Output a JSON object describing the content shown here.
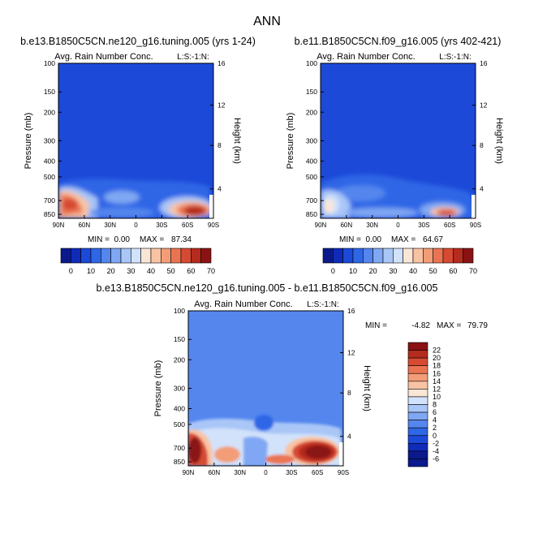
{
  "page": {
    "season": "ANN"
  },
  "colors": {
    "scale": [
      "#0a1a8c",
      "#0f2bb8",
      "#1c49d8",
      "#2f66e6",
      "#5586ee",
      "#7fa7f3",
      "#a9c6f7",
      "#d2e2fb",
      "#fbe6d6",
      "#f8c3a3",
      "#f39d78",
      "#ea7452",
      "#d64a33",
      "#b52b1d",
      "#8a1212"
    ],
    "diffscale": [
      "#0a1a8c",
      "#0f2bb8",
      "#1c49d8",
      "#2f66e6",
      "#5586ee",
      "#7fa7f3",
      "#a9c6f7",
      "#d2e2fb",
      "#fbe6d6",
      "#f8c3a3",
      "#f39d78",
      "#ea7452",
      "#d64a33",
      "#b52b1d",
      "#8a1212"
    ]
  },
  "chart_data": [
    {
      "type": "heatmap",
      "id": "p1",
      "title": "b.e13.B1850C5CN.ne120_g16.tuning.005 (yrs 1-24)",
      "subtitle": "Avg. Rain Number Conc.",
      "corner_label": "L:S:-1:N:",
      "ylabel": "Pressure (mb)",
      "ylabel_right": "Height (km)",
      "xticks": [
        "90N",
        "60N",
        "30N",
        "0",
        "30S",
        "60S",
        "90S"
      ],
      "yticks": [
        "100",
        "150",
        "200",
        "300",
        "400",
        "500",
        "700",
        "850"
      ],
      "yticks_right": [
        "16",
        "12",
        "8",
        "4"
      ],
      "min_label": "MIN =",
      "min": "0.00",
      "max_label": "MAX =",
      "max": "87.34",
      "colorbar_ticks": [
        "0",
        "10",
        "20",
        "30",
        "40",
        "50",
        "60",
        "70"
      ]
    },
    {
      "type": "heatmap",
      "id": "p2",
      "title": "b.e11.B1850C5CN.f09_g16.005 (yrs 402-421)",
      "subtitle": "Avg. Rain Number Conc.",
      "corner_label": "L:S:-1:N:",
      "ylabel": "Pressure (mb)",
      "ylabel_right": "Height (km)",
      "xticks": [
        "90N",
        "60N",
        "30N",
        "0",
        "30S",
        "60S",
        "90S"
      ],
      "yticks": [
        "100",
        "150",
        "200",
        "300",
        "400",
        "500",
        "700",
        "850"
      ],
      "yticks_right": [
        "16",
        "12",
        "8",
        "4"
      ],
      "min_label": "MIN =",
      "min": "0.00",
      "max_label": "MAX =",
      "max": "64.67",
      "colorbar_ticks": [
        "0",
        "10",
        "20",
        "30",
        "40",
        "50",
        "60",
        "70"
      ]
    },
    {
      "type": "heatmap",
      "id": "p3",
      "title": "b.e13.B1850C5CN.ne120_g16.tuning.005 - b.e11.B1850C5CN.f09_g16.005",
      "subtitle": "Avg. Rain Number Conc.",
      "corner_label": "L:S:-1:N:",
      "ylabel": "Pressure (mb)",
      "ylabel_right": "Height (km)",
      "xticks": [
        "90N",
        "60N",
        "30N",
        "0",
        "30S",
        "60S",
        "90S"
      ],
      "yticks": [
        "100",
        "150",
        "200",
        "300",
        "400",
        "500",
        "700",
        "850"
      ],
      "yticks_right": [
        "16",
        "12",
        "8",
        "4"
      ],
      "min_label": "MIN =",
      "min": "-4.82",
      "max_label": "MAX =",
      "max": "79.79",
      "colorbar_ticks": [
        "22",
        "20",
        "18",
        "16",
        "14",
        "12",
        "10",
        "8",
        "6",
        "4",
        "2",
        "0",
        "-2",
        "-4",
        "-6"
      ]
    }
  ]
}
